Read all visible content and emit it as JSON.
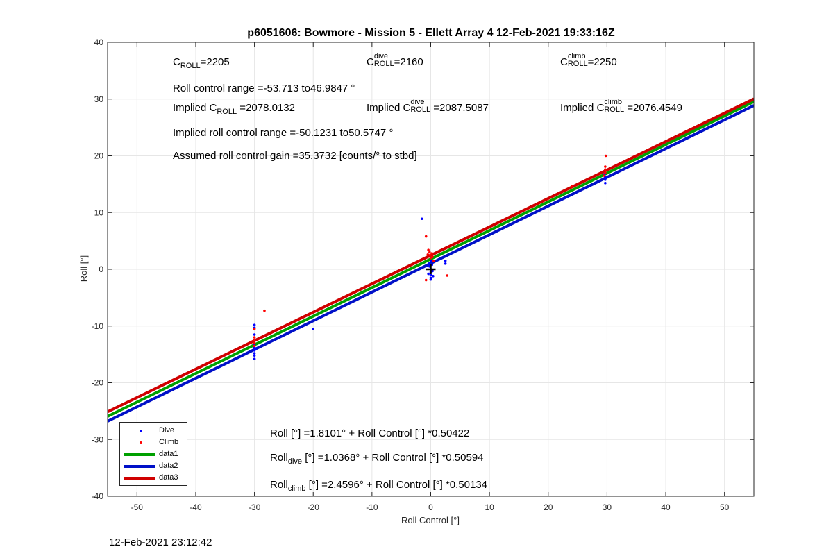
{
  "colors": {
    "dive": "#0000ff",
    "climb": "#ff0000",
    "data1": "#00a000",
    "data2": "#0010c8",
    "data3": "#d00000",
    "axis": "#262626",
    "grid": "#e6e6e6",
    "mean_marker": "#000000"
  },
  "annotations": {
    "c_roll": {
      "base": "C",
      "sub": "ROLL",
      "value": "=2205"
    },
    "c_roll_dive": {
      "base": "C",
      "sup": "dive",
      "sub": "ROLL",
      "value": "=2160"
    },
    "c_roll_climb": {
      "base": "C",
      "sup": "climb",
      "sub": "ROLL",
      "value": "=2250"
    },
    "range": "Roll control range =-53.713 to46.9847 °",
    "implied_c": {
      "prefix": "Implied C",
      "sub": "ROLL",
      "value": " =2078.0132"
    },
    "implied_c_dive": {
      "prefix": "Implied C",
      "sup": "dive",
      "sub": "ROLL",
      "value": " =2087.5087"
    },
    "implied_c_climb": {
      "prefix": "Implied C",
      "sup": "climb",
      "sub": "ROLL",
      "value": " =2076.4549"
    },
    "implied_range": "Implied roll control range =-50.1231 to50.5747 °",
    "gain": "Assumed roll control gain =35.3732 [counts/° to stbd]",
    "fit_all": "Roll [°] =1.8101° + Roll Control [°] *0.50422",
    "fit_dive": {
      "base": "Roll",
      "sub": "dive",
      "rest": " [°] =1.0368° + Roll Control [°] *0.50594"
    },
    "fit_climb": {
      "base": "Roll",
      "sub": "climb",
      "rest": " [°] =2.4596° + Roll Control [°] *0.50134"
    }
  },
  "footer": "12-Feb-2021 23:12:42",
  "chart_data": {
    "type": "scatter",
    "title": "p6051606: Bowmore - Mission 5 - Ellett Array 4 12-Feb-2021 19:33:16Z",
    "xlabel": "Roll Control [°]",
    "ylabel": "Roll [°]",
    "xlim": [
      -55,
      55
    ],
    "ylim": [
      -40,
      40
    ],
    "xticks": [
      -50,
      -40,
      -30,
      -20,
      -10,
      0,
      10,
      20,
      30,
      40,
      50
    ],
    "yticks": [
      -40,
      -30,
      -20,
      -10,
      0,
      10,
      20,
      30,
      40
    ],
    "grid": true,
    "legend_position": "bottom-left",
    "series": [
      {
        "name": "Dive",
        "kind": "points",
        "color": "#0000ff",
        "points": [
          [
            -30,
            -9.8
          ],
          [
            -30,
            -10.3
          ],
          [
            -30,
            -11.5
          ],
          [
            -30,
            -12.5
          ],
          [
            -30,
            -13.2
          ],
          [
            -30,
            -13.8
          ],
          [
            -30,
            -14.3
          ],
          [
            -30,
            -14.8
          ],
          [
            -30,
            -15.2
          ],
          [
            -30,
            -15.8
          ],
          [
            -29.8,
            -14.0
          ],
          [
            -20,
            -10.5
          ],
          [
            -1.5,
            8.9
          ],
          [
            -0.3,
            1.0
          ],
          [
            -0.2,
            0.5
          ],
          [
            0,
            0
          ],
          [
            0,
            -0.5
          ],
          [
            0,
            -1.0
          ],
          [
            0,
            -1.5
          ],
          [
            0,
            -1.8
          ],
          [
            0.2,
            0.8
          ],
          [
            0.3,
            -0.3
          ],
          [
            0.4,
            -1.2
          ],
          [
            -0.4,
            -0.8
          ],
          [
            0.1,
            1.5
          ],
          [
            2.5,
            1.0
          ],
          [
            2.5,
            1.5
          ],
          [
            29.7,
            15.2
          ],
          [
            29.7,
            15.8
          ],
          [
            29.7,
            16.3
          ],
          [
            29.6,
            16.8
          ]
        ]
      },
      {
        "name": "Climb",
        "kind": "points",
        "color": "#ff0000",
        "points": [
          [
            -30,
            -10.5
          ],
          [
            -30,
            -12
          ],
          [
            -30,
            -12.5
          ],
          [
            -30,
            -13
          ],
          [
            -30,
            -13.5
          ],
          [
            -28.3,
            -7.3
          ],
          [
            -0.8,
            5.8
          ],
          [
            -0.4,
            3.4
          ],
          [
            -0.2,
            3.0
          ],
          [
            -0.1,
            2.5
          ],
          [
            0,
            2.0
          ],
          [
            0.2,
            2.8
          ],
          [
            0.3,
            2.2
          ],
          [
            0.5,
            1.5
          ],
          [
            -0.5,
            2.6
          ],
          [
            -0.8,
            -1.9
          ],
          [
            2.8,
            -1.1
          ],
          [
            24,
            14.6
          ],
          [
            29.8,
            20.0
          ],
          [
            29.7,
            18.1
          ],
          [
            29.7,
            17.6
          ],
          [
            29.7,
            17.0
          ],
          [
            29.5,
            16.5
          ]
        ]
      },
      {
        "name": "data1",
        "kind": "line",
        "color": "#00a000",
        "intercept": 1.8101,
        "slope": 0.50422
      },
      {
        "name": "data2",
        "kind": "line",
        "color": "#0010c8",
        "intercept": 1.0368,
        "slope": 0.50594
      },
      {
        "name": "data3",
        "kind": "line",
        "color": "#d00000",
        "intercept": 2.4596,
        "slope": 0.50134
      }
    ],
    "mean_marker": {
      "symbol": "+",
      "x": 0,
      "y": 0
    }
  }
}
